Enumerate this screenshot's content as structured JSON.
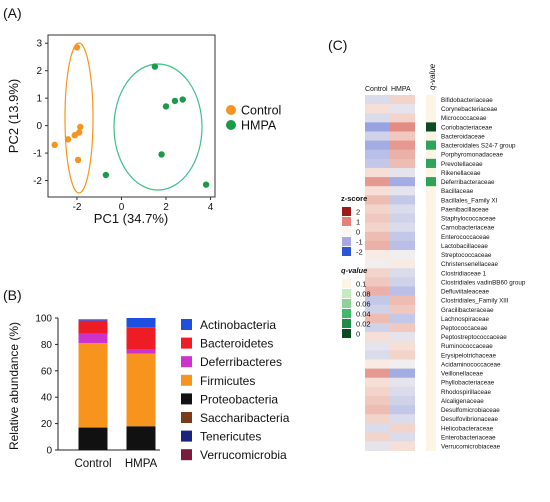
{
  "panel_labels": {
    "a": "(A)",
    "b": "(B)",
    "c": "(C)"
  },
  "chart_data": [
    {
      "type": "scatter",
      "xlabel": "PC1 (34.7%)",
      "ylabel": "PC2 (13.9%)",
      "xlim": [
        -3.3,
        4.2
      ],
      "ylim": [
        -2.6,
        3.3
      ],
      "xticks": [
        -2,
        0,
        2,
        4
      ],
      "yticks": [
        -2,
        -1,
        0,
        1,
        2,
        3
      ],
      "legend_position": "right",
      "series": [
        {
          "name": "Control",
          "color": "#f7941d",
          "points": [
            [
              -2.0,
              2.85
            ],
            [
              -1.85,
              -0.05
            ],
            [
              -1.9,
              -0.25
            ],
            [
              -2.1,
              -0.35
            ],
            [
              -2.4,
              -0.5
            ],
            [
              -1.95,
              -1.25
            ],
            [
              -3.0,
              -0.7
            ]
          ]
        },
        {
          "name": "HMPA",
          "color": "#1a9b4a",
          "points": [
            [
              1.5,
              2.15
            ],
            [
              2.0,
              0.7
            ],
            [
              2.4,
              0.9
            ],
            [
              2.75,
              0.95
            ],
            [
              1.8,
              -1.05
            ],
            [
              -0.7,
              -1.8
            ],
            [
              3.8,
              -2.15
            ]
          ]
        }
      ]
    },
    {
      "type": "bar",
      "stacked": true,
      "ylabel": "Relative abundance (%)",
      "ylim": [
        0,
        100
      ],
      "yticks": [
        0,
        20,
        40,
        60,
        80,
        100
      ],
      "categories": [
        "Control",
        "HMPA"
      ],
      "legend_position": "right",
      "series": [
        {
          "name": "Actinobacteria",
          "color": "#1f4fe0",
          "values": [
            1,
            7
          ]
        },
        {
          "name": "Bacteroidetes",
          "color": "#ee1c24",
          "values": [
            10,
            17
          ]
        },
        {
          "name": "Deferribacteres",
          "color": "#cc33cc",
          "values": [
            7,
            3
          ]
        },
        {
          "name": "Firmicutes",
          "color": "#f7941d",
          "values": [
            64,
            55
          ]
        },
        {
          "name": "Proteobacteria",
          "color": "#111111",
          "values": [
            17,
            18
          ]
        },
        {
          "name": "Saccharibacteria",
          "color": "#7a3b1b",
          "values": [
            0.5,
            0.5
          ]
        },
        {
          "name": "Tenericutes",
          "color": "#1a237e",
          "values": [
            0.3,
            0.3
          ]
        },
        {
          "name": "Verrucomicrobia",
          "color": "#7b1a3c",
          "values": [
            0.2,
            0.2
          ]
        }
      ],
      "stack_order_bottom_to_top": [
        "Proteobacteria",
        "Firmicutes",
        "Deferribacteres",
        "Bacteroidetes",
        "Actinobacteria"
      ]
    },
    {
      "type": "heatmap",
      "columns": [
        "Control",
        "HMPA"
      ],
      "qvalue_header": "q-value",
      "rows": [
        "Bifidobacteriaceae",
        "Corynebacteriaceae",
        "Micrococcaceae",
        "Coriobacteriaceae",
        "Bacteroidaceae",
        "Bacteroidales S24-7 group",
        "Porphyromonadaceae",
        "Prevotellaceae",
        "Rikenellaceae",
        "Deferribacteraceae",
        "Bacillaceae",
        "Bacillales_Family XI",
        "Paenibacillaceae",
        "Staphylococcaceae",
        "Carnobacteriaceae",
        "Enterococcaceae",
        "Lactobacillaceae",
        "Streptococcaceae",
        "Christensenellaceae",
        "Clostridiaceae 1",
        "Clostridiales vadinBB60 group",
        "Defluviitaleaceae",
        "Clostridiales_Family XIII",
        "Gracilibacteraceae",
        "Lachnospiraceae",
        "Peptococcaceae",
        "Peptostreptococcaceae",
        "Ruminococcaceae",
        "Erysipelotrichaceae",
        "Acidaminococcaceae",
        "Veillonellaceae",
        "Phyllobacteriaceae",
        "Rhodospirillaceae",
        "Alcaligenaceae",
        "Desulfomicrobiaceae",
        "Desulfovibrionaceae",
        "Helicobacteraceae",
        "Enterobacteriaceae",
        "Verrucomicrobiaceae"
      ],
      "zscores": [
        [
          -0.3,
          0.3
        ],
        [
          0.2,
          -0.2
        ],
        [
          -0.3,
          0.3
        ],
        [
          -0.9,
          0.9
        ],
        [
          -0.4,
          0.4
        ],
        [
          -0.8,
          0.8
        ],
        [
          -0.6,
          0.6
        ],
        [
          -0.5,
          0.5
        ],
        [
          0.2,
          -0.2
        ],
        [
          0.8,
          -0.8
        ],
        [
          0.2,
          -0.2
        ],
        [
          0.5,
          -0.5
        ],
        [
          0.3,
          -0.3
        ],
        [
          0.4,
          -0.4
        ],
        [
          0.3,
          -0.3
        ],
        [
          0.5,
          -0.5
        ],
        [
          0.6,
          -0.6
        ],
        [
          0.1,
          -0.1
        ],
        [
          -0.1,
          0.1
        ],
        [
          0.3,
          -0.3
        ],
        [
          0.4,
          -0.4
        ],
        [
          0.6,
          -0.6
        ],
        [
          -0.5,
          0.5
        ],
        [
          -0.4,
          0.4
        ],
        [
          0.5,
          -0.5
        ],
        [
          -0.4,
          0.4
        ],
        [
          0.2,
          -0.2
        ],
        [
          -0.2,
          0.2
        ],
        [
          -0.3,
          0.3
        ],
        [
          0.1,
          -0.1
        ],
        [
          0.8,
          -0.8
        ],
        [
          0.2,
          -0.2
        ],
        [
          0.3,
          -0.3
        ],
        [
          0.4,
          -0.4
        ],
        [
          0.5,
          -0.5
        ],
        [
          0.3,
          -0.3
        ],
        [
          -0.3,
          0.3
        ],
        [
          0.3,
          -0.3
        ],
        [
          -0.2,
          0.2
        ]
      ],
      "qvalues": [
        0.1,
        0.1,
        0.1,
        0.005,
        0.1,
        0.03,
        0.1,
        0.035,
        0.1,
        0.03,
        0.1,
        0.1,
        0.1,
        0.1,
        0.1,
        0.1,
        0.1,
        0.1,
        0.1,
        0.1,
        0.1,
        0.1,
        0.1,
        0.1,
        0.1,
        0.1,
        0.1,
        0.1,
        0.1,
        0.1,
        0.1,
        0.1,
        0.1,
        0.1,
        0.1,
        0.1,
        0.1,
        0.1,
        0.1
      ],
      "zscore_legend": {
        "title": "z-score",
        "labels": [
          "2",
          "1",
          "0",
          "-1",
          "-2"
        ],
        "colors": [
          "#9e1a1a",
          "#e8807a",
          "#fbf7ef",
          "#a9a7e6",
          "#2b57d6"
        ]
      },
      "qvalue_legend": {
        "title": "q-value",
        "labels": [
          "0.1",
          "0.08",
          "0.06",
          "0.04",
          "0.02",
          "0"
        ],
        "colors": [
          "#fdf5e3",
          "#c7e9c0",
          "#8fd19a",
          "#41b86b",
          "#1e8c46",
          "#0b4a22"
        ]
      }
    }
  ]
}
